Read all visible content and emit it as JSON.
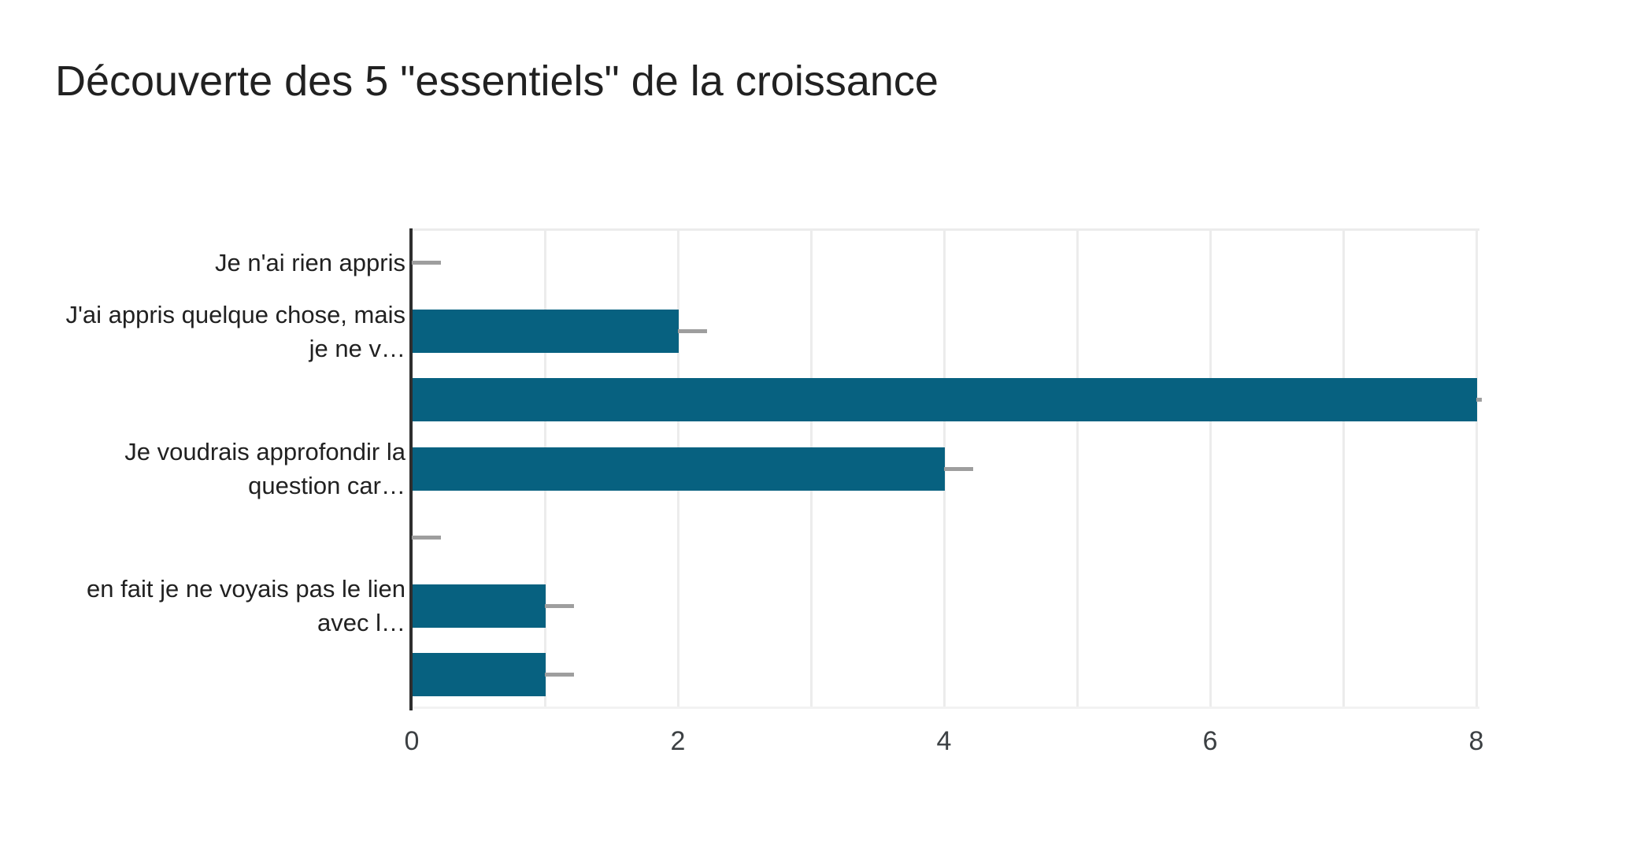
{
  "page": {
    "background": "#ffffff"
  },
  "chart_data": {
    "type": "bar",
    "orientation": "horizontal",
    "title": "Découverte des 5 \"essentiels\" de la croissance",
    "categories": [
      "Je n'ai rien appris",
      "J'ai appris quelque chose, mais je ne v…",
      "",
      "Je voudrais approfondir la question car…",
      "",
      "en fait je ne voyais pas le lien avec l…",
      ""
    ],
    "category_label_lines": [
      [
        "Je n'ai rien appris"
      ],
      [
        "J'ai appris quelque chose, mais",
        "je ne v…"
      ],
      [],
      [
        "Je voudrais approfondir la",
        "question car…"
      ],
      [],
      [
        "en fait je ne voyais pas le lien",
        "avec l…"
      ],
      []
    ],
    "values": [
      0,
      2,
      8,
      4,
      0,
      1,
      1
    ],
    "whiskers": [
      {
        "from": 0,
        "to": 0.22
      },
      {
        "from": 2,
        "to": 2.22
      },
      {
        "from": 8,
        "to": 8.04
      },
      {
        "from": 4,
        "to": 4.22
      },
      {
        "from": 0,
        "to": 0.22
      },
      {
        "from": 1,
        "to": 1.22
      },
      {
        "from": 1,
        "to": 1.22
      }
    ],
    "x_ticks": [
      0,
      2,
      4,
      6,
      8
    ],
    "xlim": [
      0,
      8
    ],
    "gridline_interval": 1,
    "legend": "none",
    "grid": true,
    "colors": {
      "bar": "#076180",
      "whisker": "#9E9E9E",
      "gridline": "#ECECEC",
      "plot_bottom_line": "#F2F2F2",
      "axis": "#2E2E2E",
      "title_text": "#212121",
      "label_text": "#212121",
      "tick_text": "#3C4043"
    }
  }
}
